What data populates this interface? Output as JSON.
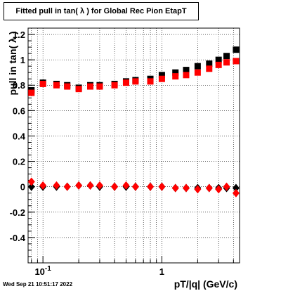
{
  "title": "Fitted pull in tan( λ ) for Global Rec Pion EtapT",
  "timestamp": "Wed Sep 21 10:51:17 2022",
  "chart_data": {
    "type": "scatter",
    "xlabel": "pT/|q| (GeV/c)",
    "ylabel": "pull in tan( λ )",
    "xscale": "log",
    "xlim": [
      0.075,
      4.5
    ],
    "ylim": [
      -0.6,
      1.25
    ],
    "grid": true,
    "x_tick_labels": [
      "10^-1",
      "1"
    ],
    "y_tick_labels": [
      "-0.4",
      "-0.2",
      "0",
      "0.2",
      "0.4",
      "0.6",
      "0.8",
      "1",
      "1.2"
    ],
    "series": [
      {
        "marker": "square",
        "color": "#000000",
        "x": [
          0.08,
          0.1,
          0.13,
          0.16,
          0.2,
          0.25,
          0.3,
          0.4,
          0.5,
          0.6,
          0.8,
          1.0,
          1.3,
          1.6,
          2.0,
          2.5,
          3.0,
          3.5,
          4.2
        ],
        "y": [
          0.76,
          0.82,
          0.81,
          0.8,
          0.78,
          0.8,
          0.8,
          0.81,
          0.83,
          0.84,
          0.85,
          0.88,
          0.9,
          0.92,
          0.95,
          0.97,
          1.0,
          1.03,
          1.08
        ]
      },
      {
        "marker": "square",
        "color": "#ff0000",
        "x": [
          0.08,
          0.1,
          0.13,
          0.16,
          0.2,
          0.25,
          0.3,
          0.4,
          0.5,
          0.6,
          0.8,
          1.0,
          1.3,
          1.6,
          2.0,
          2.5,
          3.0,
          3.5,
          4.2
        ],
        "y": [
          0.74,
          0.81,
          0.8,
          0.79,
          0.77,
          0.79,
          0.79,
          0.8,
          0.82,
          0.83,
          0.83,
          0.85,
          0.87,
          0.88,
          0.9,
          0.93,
          0.96,
          0.98,
          0.99
        ]
      },
      {
        "marker": "diamond",
        "color": "#000000",
        "x": [
          0.08,
          0.1,
          0.13,
          0.16,
          0.2,
          0.25,
          0.3,
          0.4,
          0.5,
          0.6,
          0.8,
          1.0,
          1.3,
          1.6,
          2.0,
          2.5,
          3.0,
          3.5,
          4.2
        ],
        "y": [
          0.0,
          0.0,
          0.0,
          0.0,
          0.01,
          0.01,
          0.0,
          0.0,
          0.0,
          0.0,
          0.0,
          0.0,
          -0.01,
          -0.01,
          -0.01,
          -0.01,
          -0.01,
          -0.01,
          -0.01
        ]
      },
      {
        "marker": "diamond",
        "color": "#ff0000",
        "x": [
          0.08,
          0.1,
          0.13,
          0.16,
          0.2,
          0.25,
          0.3,
          0.4,
          0.5,
          0.6,
          0.8,
          1.0,
          1.3,
          1.6,
          2.0,
          2.5,
          3.0,
          3.5,
          4.2
        ],
        "y": [
          0.04,
          0.01,
          0.01,
          0.0,
          0.01,
          0.01,
          0.01,
          0.0,
          0.01,
          0.0,
          0.0,
          0.0,
          -0.01,
          -0.01,
          -0.02,
          -0.01,
          -0.02,
          0.0,
          -0.05
        ]
      }
    ]
  }
}
